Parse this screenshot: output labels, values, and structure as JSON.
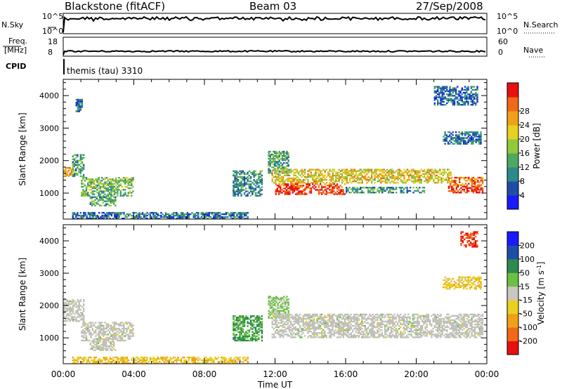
{
  "header": {
    "station": "Blackstone (fitACF)",
    "beam": "Beam 03",
    "date": "27/Sep/2008"
  },
  "nsky_panel": {
    "left_label": "N.Sky",
    "left_ticks": [
      "10^5",
      "10^0"
    ],
    "right_label": "N.Search",
    "right_ticks": [
      "10^5",
      "10^0"
    ]
  },
  "freq_panel": {
    "left_label_line1": "Freq.",
    "left_label_line2": "[MHz]",
    "left_ticks": [
      "18",
      "8"
    ],
    "right_label": "Nave",
    "right_ticks": [
      "60",
      "0"
    ]
  },
  "cpid": {
    "label": "CPID",
    "program": "themis (tau) 3310"
  },
  "colors": {
    "power_scale": [
      "#1a1aff",
      "#1f4ea8",
      "#2e8a8a",
      "#4fa860",
      "#93c83a",
      "#e8d020",
      "#f0a018",
      "#f06818",
      "#e81010"
    ],
    "velocity_scale": [
      "#e81010",
      "#f06818",
      "#f0a018",
      "#e8d020",
      "#c8c8c0",
      "#6ac040",
      "#2e8a50",
      "#1f4ea8",
      "#1a1aff"
    ],
    "ground_scatter": "#c0c0b8"
  },
  "chart_data": [
    {
      "type": "heatmap",
      "panel": "power",
      "xlabel": "",
      "ylabel": "Slant Range [km]",
      "xlim": [
        0,
        24
      ],
      "ylim": [
        200,
        4500
      ],
      "y_ticks": [
        1000,
        2000,
        3000,
        4000
      ],
      "x_tick_hours": [
        0,
        4,
        8,
        12,
        16,
        20,
        24
      ],
      "colorbar": {
        "label": "Power [dB]",
        "range": [
          0,
          32
        ],
        "ticks": [
          4,
          8,
          12,
          16,
          20,
          24,
          28
        ]
      },
      "scatter_regions": [
        {
          "t": [
            0.0,
            0.6
          ],
          "range": [
            1500,
            1800
          ],
          "power": 20
        },
        {
          "t": [
            0.5,
            1.2
          ],
          "range": [
            1500,
            2200
          ],
          "power": 10
        },
        {
          "t": [
            0.7,
            1.1
          ],
          "range": [
            3500,
            3900
          ],
          "power": 6
        },
        {
          "t": [
            1.0,
            4.0
          ],
          "range": [
            900,
            1500
          ],
          "power": 12
        },
        {
          "t": [
            1.5,
            3.0
          ],
          "range": [
            600,
            900
          ],
          "power": 10
        },
        {
          "t": [
            0.5,
            10.5
          ],
          "range": [
            200,
            420
          ],
          "power": 6
        },
        {
          "t": [
            9.6,
            11.3
          ],
          "range": [
            900,
            1700
          ],
          "power": 8
        },
        {
          "t": [
            11.6,
            12.8
          ],
          "range": [
            1600,
            2300
          ],
          "power": 10
        },
        {
          "t": [
            11.8,
            22.0
          ],
          "range": [
            1300,
            1750
          ],
          "power": 18
        },
        {
          "t": [
            12.0,
            16.0
          ],
          "range": [
            950,
            1300
          ],
          "power": 26
        },
        {
          "t": [
            16.0,
            20.5
          ],
          "range": [
            1000,
            1200
          ],
          "power": 9
        },
        {
          "t": [
            21.8,
            23.8
          ],
          "range": [
            1000,
            1500
          ],
          "power": 24
        },
        {
          "t": [
            21.5,
            23.7
          ],
          "range": [
            2500,
            2900
          ],
          "power": 6
        },
        {
          "t": [
            21.0,
            23.5
          ],
          "range": [
            3700,
            4300
          ],
          "power": 5
        }
      ]
    },
    {
      "type": "heatmap",
      "panel": "velocity",
      "xlabel": "Time UT",
      "ylabel": "Slant Range [km]",
      "xlim": [
        0,
        24
      ],
      "ylim": [
        200,
        4500
      ],
      "y_ticks": [
        1000,
        2000,
        3000,
        4000
      ],
      "x_tick_labels": [
        "00:00",
        "04:00",
        "08:00",
        "12:00",
        "16:00",
        "20:00",
        "00:00"
      ],
      "colorbar": {
        "label": "Velocity [m s^-1]",
        "ticks": [
          "200",
          "100",
          "50",
          "15",
          "-15",
          "-50",
          "-100",
          "-200"
        ]
      },
      "scatter_regions": [
        {
          "t": [
            0.0,
            1.2
          ],
          "range": [
            1500,
            2200
          ],
          "velocity": 0
        },
        {
          "t": [
            1.0,
            4.0
          ],
          "range": [
            900,
            1500
          ],
          "velocity": 5
        },
        {
          "t": [
            1.5,
            3.0
          ],
          "range": [
            600,
            900
          ],
          "velocity": 0
        },
        {
          "t": [
            0.5,
            10.5
          ],
          "range": [
            200,
            420
          ],
          "velocity": -40
        },
        {
          "t": [
            9.6,
            11.3
          ],
          "range": [
            900,
            1700
          ],
          "velocity": 60
        },
        {
          "t": [
            11.6,
            12.8
          ],
          "range": [
            1600,
            2300
          ],
          "velocity": 20
        },
        {
          "t": [
            11.8,
            23.8
          ],
          "range": [
            1000,
            1750
          ],
          "velocity": 0
        },
        {
          "t": [
            21.5,
            23.7
          ],
          "range": [
            2500,
            2900
          ],
          "velocity": -40
        },
        {
          "t": [
            22.5,
            23.5
          ],
          "range": [
            3800,
            4300
          ],
          "velocity": -200
        }
      ]
    }
  ]
}
